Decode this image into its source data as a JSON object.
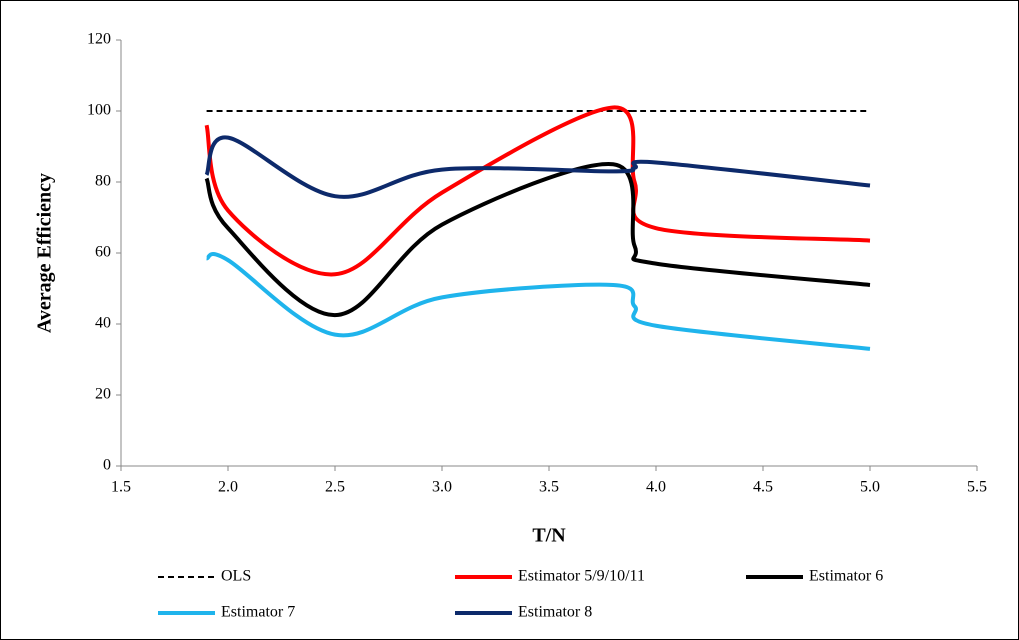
{
  "chart_data": {
    "type": "line",
    "xlabel": "T/N",
    "ylabel": "Average Efficiency",
    "x": [
      1.9,
      2.0,
      2.5,
      3.0,
      3.8,
      3.9,
      4.0,
      5.0
    ],
    "series": [
      {
        "name": "OLS",
        "color": "#000000",
        "dashed": true,
        "values": [
          100,
          100,
          100,
          100,
          100,
          100,
          100,
          100
        ]
      },
      {
        "name": "Estimator 5/9/10/11",
        "color": "#ff0000",
        "values": [
          96,
          72,
          54,
          77,
          101,
          80,
          67,
          63.5
        ]
      },
      {
        "name": "Estimator 6",
        "color": "#000000",
        "values": [
          81,
          67,
          42.5,
          68,
          85,
          62,
          57,
          51
        ]
      },
      {
        "name": "Estimator 7",
        "color": "#1fb4ec",
        "values": [
          58.5,
          58,
          37,
          47.5,
          51,
          45,
          39.5,
          33
        ]
      },
      {
        "name": "Estimator 8",
        "color": "#0d2a6b",
        "values": [
          82,
          92.5,
          76,
          83.5,
          83,
          84,
          85.5,
          79
        ]
      }
    ],
    "xlim": [
      1.5,
      5.5
    ],
    "xticks": [
      1.5,
      {
        "value": 2,
        "label": "2.0"
      },
      2.5,
      {
        "value": 3,
        "label": "3.0"
      },
      3.5,
      {
        "value": 4,
        "label": "4.0"
      },
      4.5,
      {
        "value": 5,
        "label": "5.0"
      },
      5.5
    ],
    "ylim": [
      0,
      120
    ],
    "yticks": [
      0,
      20,
      40,
      60,
      80,
      100,
      120
    ],
    "legend": "bottom",
    "grid": false
  }
}
